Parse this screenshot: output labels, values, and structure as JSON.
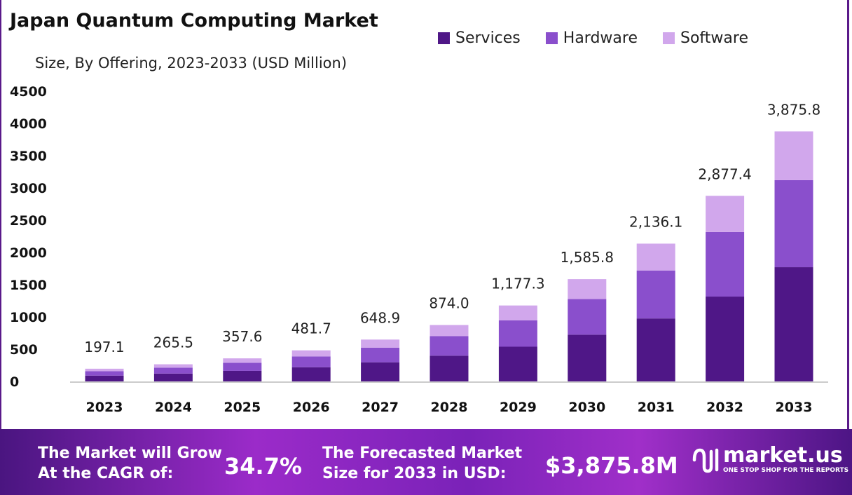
{
  "chart_data": {
    "type": "bar",
    "stacked": true,
    "title": "Japan Quantum Computing Market",
    "subtitle": "Size, By Offering, 2023-2033 (USD Million)",
    "categories": [
      "2023",
      "2024",
      "2025",
      "2026",
      "2027",
      "2028",
      "2029",
      "2030",
      "2031",
      "2032",
      "2033"
    ],
    "series": [
      {
        "name": "Services",
        "color": "#4f1787",
        "values": [
          90.1,
          121.3,
          163.4,
          220.1,
          296.5,
          399.4,
          538.0,
          724.7,
          976.2,
          1315.0,
          1771.2
        ]
      },
      {
        "name": "Hardware",
        "color": "#8a4fcc",
        "values": [
          68.6,
          92.4,
          124.4,
          167.6,
          225.8,
          304.2,
          409.7,
          551.9,
          743.4,
          1001.3,
          1348.8
        ]
      },
      {
        "name": "Software",
        "color": "#d1a7ec",
        "values": [
          38.4,
          51.8,
          69.8,
          94.0,
          126.6,
          170.4,
          229.6,
          309.2,
          416.5,
          561.1,
          755.8
        ]
      }
    ],
    "totals": [
      "197.1",
      "265.5",
      "357.6",
      "481.7",
      "648.9",
      "874.0",
      "1,177.3",
      "1,585.8",
      "2,136.1",
      "2,877.4",
      "3,875.8"
    ],
    "totals_values": [
      197.1,
      265.5,
      357.6,
      481.7,
      648.9,
      874.0,
      1177.3,
      1585.8,
      2136.1,
      2877.4,
      3875.8
    ],
    "yticks": [
      "0",
      "500",
      "1000",
      "1500",
      "2000",
      "2500",
      "3000",
      "3500",
      "4000",
      "4500"
    ],
    "ylim": [
      0,
      4500
    ],
    "grid": false,
    "legend_position": "top-right"
  },
  "footer": {
    "cagr_label_1": "The Market will Grow",
    "cagr_label_2": "At the CAGR of:",
    "cagr_value": "34.7%",
    "forecast_label_1": "The Forecasted Market",
    "forecast_label_2": "Size for 2033 in USD:",
    "forecast_value": "$3,875.8M",
    "brand": "market.us",
    "brand_tagline": "ONE STOP SHOP FOR THE REPORTS"
  }
}
